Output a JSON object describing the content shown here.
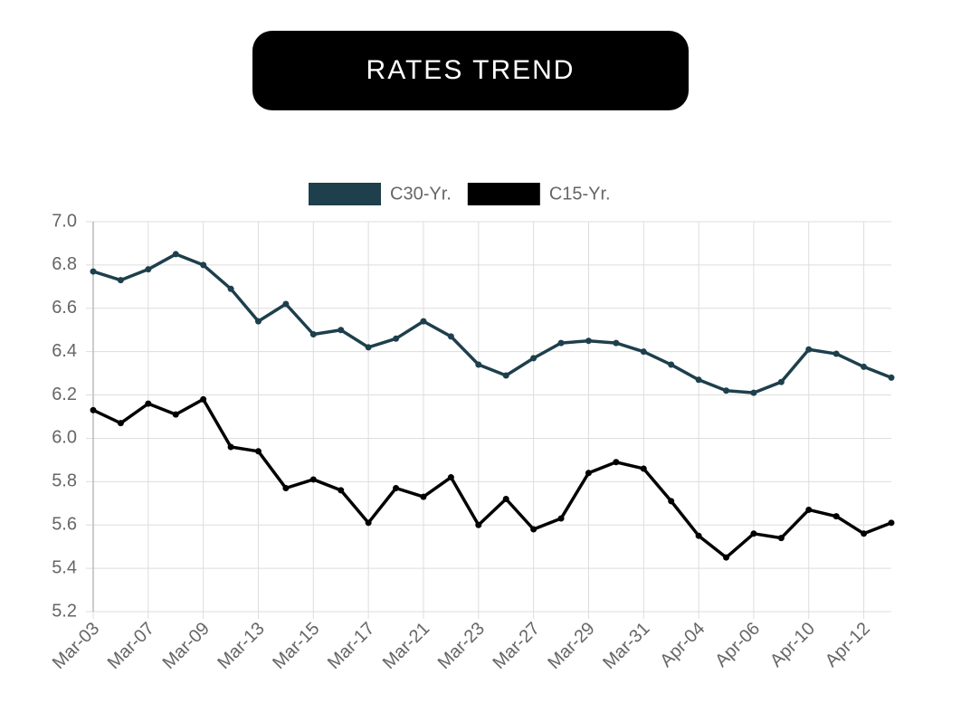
{
  "chart_data": {
    "type": "line",
    "title": "RATES TREND",
    "categories": [
      "Mar-03",
      null,
      "Mar-07",
      null,
      "Mar-09",
      null,
      "Mar-13",
      null,
      "Mar-15",
      null,
      "Mar-17",
      null,
      "Mar-21",
      null,
      "Mar-23",
      null,
      "Mar-27",
      null,
      "Mar-29",
      null,
      "Mar-31",
      null,
      "Apr-04",
      null,
      "Apr-06",
      null,
      "Apr-10",
      null,
      "Apr-12",
      null
    ],
    "series": [
      {
        "name": "C30-Yr.",
        "color": "#1e3f4c",
        "values": [
          6.77,
          6.73,
          6.78,
          6.85,
          6.8,
          6.69,
          6.54,
          6.62,
          6.48,
          6.5,
          6.42,
          6.46,
          6.54,
          6.47,
          6.34,
          6.29,
          6.37,
          6.44,
          6.45,
          6.44,
          6.4,
          6.34,
          6.27,
          6.22,
          6.21,
          6.26,
          6.41,
          6.39,
          6.33,
          6.28
        ]
      },
      {
        "name": "C15-Yr.",
        "color": "#000000",
        "values": [
          6.13,
          6.07,
          6.16,
          6.11,
          6.18,
          5.96,
          5.94,
          5.77,
          5.81,
          5.76,
          5.61,
          5.77,
          5.73,
          5.82,
          5.6,
          5.72,
          5.58,
          5.63,
          5.84,
          5.89,
          5.86,
          5.71,
          5.55,
          5.45,
          5.56,
          5.54,
          5.67,
          5.64,
          5.56,
          5.61
        ]
      }
    ],
    "ylim": [
      5.2,
      7.0
    ],
    "yticks": [
      5.2,
      5.4,
      5.6,
      5.8,
      {
        "value": 6.0,
        "label": "6.0"
      },
      6.2,
      6.4,
      6.6,
      6.8,
      {
        "value": 7.0,
        "label": "7.0"
      }
    ],
    "grid": true,
    "legend": "top"
  }
}
